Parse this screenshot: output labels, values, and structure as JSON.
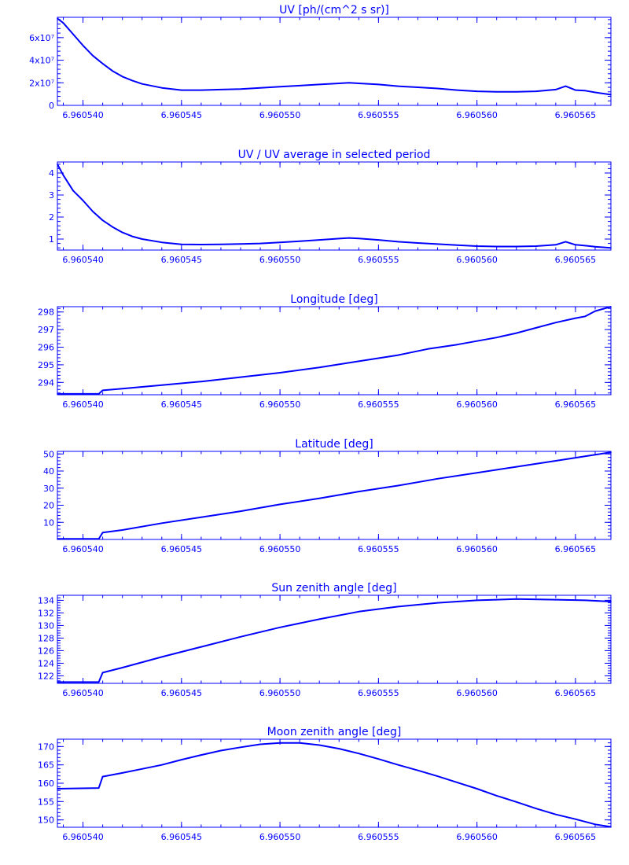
{
  "colors": {
    "ink": "#0000ff",
    "background": "#ffffff"
  },
  "x_tick_labels": [
    "6.960540",
    "6.960545",
    "6.960550",
    "6.960555",
    "6.960560",
    "6.960565"
  ],
  "chart_data": [
    {
      "type": "line",
      "title": "UV [ph/(cm^2 s sr)]",
      "xlim": [
        6.9605387,
        6.9605668
      ],
      "ylim": [
        0,
        78000000.0
      ],
      "xticks": [
        6.96054,
        6.960545,
        6.96055,
        6.960555,
        6.96056,
        6.960565
      ],
      "yticks": [
        0,
        20000000.0,
        40000000.0,
        60000000.0
      ],
      "ytick_labels": [
        "0",
        "2x10⁷",
        "4x10⁷",
        "6x10⁷"
      ],
      "x": [
        6.9605387,
        6.960539,
        6.9605395,
        6.96054,
        6.9605405,
        6.960541,
        6.9605415,
        6.960542,
        6.9605425,
        6.960543,
        6.960544,
        6.960545,
        6.960546,
        6.960547,
        6.960548,
        6.960549,
        6.96055,
        6.960551,
        6.960552,
        6.960553,
        6.9605535,
        6.960554,
        6.960555,
        6.960556,
        6.960557,
        6.960558,
        6.960559,
        6.96056,
        6.960561,
        6.960562,
        6.960563,
        6.960564,
        6.9605645,
        6.960565,
        6.9605655,
        6.960566,
        6.9605668
      ],
      "y": [
        77000000.0,
        73000000.0,
        63000000.0,
        53000000.0,
        44000000.0,
        37000000.0,
        30500000.0,
        25500000.0,
        22000000.0,
        19000000.0,
        15500000.0,
        13500000.0,
        13500000.0,
        14000000.0,
        14500000.0,
        15500000.0,
        16500000.0,
        17500000.0,
        18500000.0,
        19500000.0,
        20000000.0,
        19500000.0,
        18500000.0,
        17000000.0,
        16000000.0,
        15000000.0,
        13500000.0,
        12500000.0,
        12000000.0,
        12000000.0,
        12500000.0,
        14000000.0,
        17000000.0,
        13500000.0,
        13000000.0,
        11500000.0,
        9500000.0
      ]
    },
    {
      "type": "line",
      "title": "UV / UV average in selected period",
      "xlim": [
        6.9605387,
        6.9605668
      ],
      "ylim": [
        0.5,
        4.5
      ],
      "xticks": [
        6.96054,
        6.960545,
        6.96055,
        6.960555,
        6.96056,
        6.960565
      ],
      "yticks": [
        1,
        2,
        3,
        4
      ],
      "ytick_labels": [
        "1",
        "2",
        "3",
        "4"
      ],
      "x": [
        6.9605387,
        6.960539,
        6.9605395,
        6.96054,
        6.9605405,
        6.960541,
        6.9605415,
        6.960542,
        6.9605425,
        6.960543,
        6.960544,
        6.960545,
        6.960546,
        6.960547,
        6.960548,
        6.960549,
        6.96055,
        6.960551,
        6.960552,
        6.960553,
        6.9605535,
        6.960554,
        6.960555,
        6.960556,
        6.960557,
        6.960558,
        6.960559,
        6.96056,
        6.960561,
        6.960562,
        6.960563,
        6.960564,
        6.9605645,
        6.960565,
        6.9605655,
        6.960566,
        6.9605668
      ],
      "y": [
        4.4,
        3.9,
        3.2,
        2.75,
        2.25,
        1.85,
        1.55,
        1.3,
        1.12,
        1.0,
        0.85,
        0.76,
        0.75,
        0.76,
        0.78,
        0.8,
        0.85,
        0.9,
        0.96,
        1.02,
        1.05,
        1.03,
        0.96,
        0.88,
        0.82,
        0.77,
        0.72,
        0.68,
        0.66,
        0.66,
        0.68,
        0.74,
        0.88,
        0.74,
        0.7,
        0.65,
        0.6
      ]
    },
    {
      "type": "line",
      "title": "Longitude [deg]",
      "xlim": [
        6.9605387,
        6.9605668
      ],
      "ylim": [
        293.3,
        298.3
      ],
      "xticks": [
        6.96054,
        6.960545,
        6.96055,
        6.960555,
        6.96056,
        6.960565
      ],
      "yticks": [
        294,
        295,
        296,
        297,
        298
      ],
      "ytick_labels": [
        "294",
        "295",
        "296",
        "297",
        "298"
      ],
      "x": [
        6.9605387,
        6.9605408,
        6.960541,
        6.960542,
        6.960544,
        6.960546,
        6.960548,
        6.96055,
        6.960552,
        6.960554,
        6.960556,
        6.9605575,
        6.960559,
        6.96056,
        6.960561,
        6.960562,
        6.960563,
        6.960564,
        6.960565,
        6.9605655,
        6.960566,
        6.9605668
      ],
      "y": [
        293.35,
        293.35,
        293.55,
        293.65,
        293.85,
        294.05,
        294.3,
        294.55,
        294.85,
        295.2,
        295.55,
        295.9,
        296.15,
        296.35,
        296.55,
        296.8,
        297.1,
        297.4,
        297.65,
        297.75,
        298.05,
        298.3
      ]
    },
    {
      "type": "line",
      "title": "Latitude [deg]",
      "xlim": [
        6.9605387,
        6.9605668
      ],
      "ylim": [
        0,
        51.5
      ],
      "xticks": [
        6.96054,
        6.960545,
        6.96055,
        6.960555,
        6.96056,
        6.960565
      ],
      "yticks": [
        10,
        20,
        30,
        40,
        50
      ],
      "ytick_labels": [
        "10",
        "20",
        "30",
        "40",
        "50"
      ],
      "x": [
        6.9605387,
        6.9605408,
        6.960541,
        6.960542,
        6.960544,
        6.960546,
        6.960548,
        6.96055,
        6.960552,
        6.960554,
        6.960556,
        6.960558,
        6.96056,
        6.960562,
        6.960564,
        6.960566,
        6.9605668
      ],
      "y": [
        0.3,
        0.3,
        4.0,
        5.5,
        9.5,
        13.0,
        16.5,
        20.5,
        24.0,
        28.0,
        31.5,
        35.5,
        39.0,
        42.5,
        46.0,
        49.5,
        51.0
      ]
    },
    {
      "type": "line",
      "title": "Sun zenith angle [deg]",
      "xlim": [
        6.9605387,
        6.9605668
      ],
      "ylim": [
        120.8,
        134.8
      ],
      "xticks": [
        6.96054,
        6.960545,
        6.96055,
        6.960555,
        6.96056,
        6.960565
      ],
      "yticks": [
        122,
        124,
        126,
        128,
        130,
        132,
        134
      ],
      "ytick_labels": [
        "122",
        "124",
        "126",
        "128",
        "130",
        "132",
        "134"
      ],
      "x": [
        6.9605387,
        6.9605408,
        6.960541,
        6.960542,
        6.960544,
        6.960546,
        6.960548,
        6.96055,
        6.960552,
        6.960554,
        6.960556,
        6.960558,
        6.96056,
        6.960562,
        6.960564,
        6.9605655,
        6.9605668
      ],
      "y": [
        121.0,
        121.0,
        122.5,
        123.3,
        125.0,
        126.6,
        128.2,
        129.7,
        131.0,
        132.2,
        133.0,
        133.6,
        134.0,
        134.2,
        134.1,
        134.0,
        133.8
      ]
    },
    {
      "type": "line",
      "title": "Moon zenith angle [deg]",
      "xlim": [
        6.9605387,
        6.9605668
      ],
      "ylim": [
        148.0,
        172.0
      ],
      "xticks": [
        6.96054,
        6.960545,
        6.96055,
        6.960555,
        6.96056,
        6.960565
      ],
      "yticks": [
        150,
        155,
        160,
        165,
        170
      ],
      "ytick_labels": [
        "150",
        "155",
        "160",
        "165",
        "170"
      ],
      "x": [
        6.9605387,
        6.9605408,
        6.960541,
        6.960542,
        6.960543,
        6.960544,
        6.960545,
        6.960546,
        6.960547,
        6.960548,
        6.960549,
        6.96055,
        6.960551,
        6.960552,
        6.960553,
        6.960554,
        6.960555,
        6.960556,
        6.960557,
        6.960558,
        6.960559,
        6.96056,
        6.960561,
        6.960562,
        6.960563,
        6.960564,
        6.960565,
        6.960566,
        6.9605668
      ],
      "y": [
        158.5,
        158.7,
        161.8,
        162.8,
        163.9,
        165.0,
        166.4,
        167.7,
        168.9,
        169.8,
        170.6,
        171.0,
        171.0,
        170.4,
        169.4,
        168.1,
        166.6,
        165.0,
        163.5,
        161.9,
        160.2,
        158.5,
        156.6,
        154.9,
        153.1,
        151.5,
        150.2,
        148.8,
        148.1
      ]
    }
  ]
}
